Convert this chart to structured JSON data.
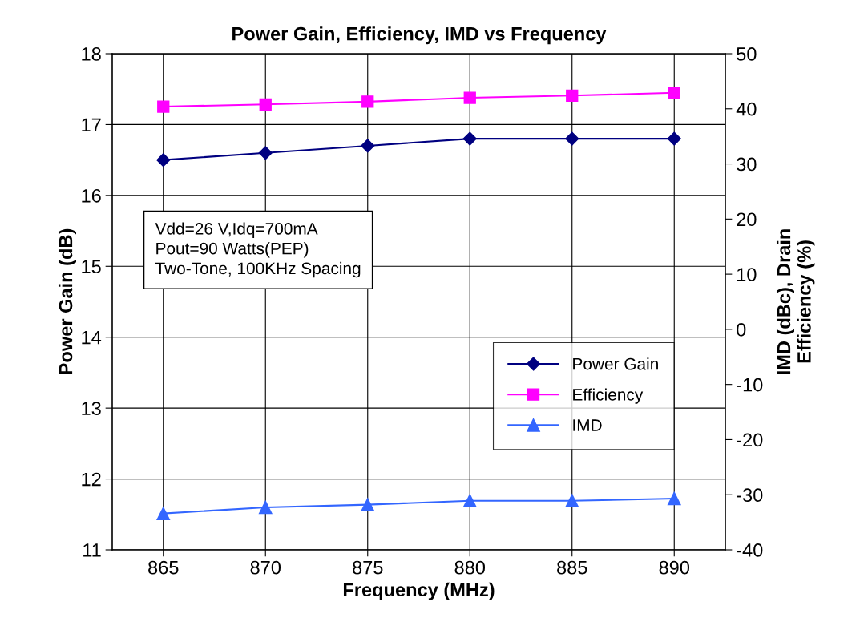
{
  "chart_data": {
    "type": "line",
    "title": "Power Gain, Efficiency, IMD vs Frequency",
    "xlabel": "Frequency (MHz)",
    "ylabel": "Power Gain (dB)",
    "y2label": "IMD (dBc), Drain\nEfficiency (%)",
    "x": [
      865,
      870,
      875,
      880,
      885,
      890
    ],
    "series": [
      {
        "name": "Power Gain",
        "color": "#000080",
        "marker": "diamond",
        "values": [
          16.5,
          16.6,
          16.7,
          16.8,
          16.8,
          16.8
        ]
      },
      {
        "name": "Efficiency",
        "color": "#ff00ff",
        "marker": "square",
        "axis": "y2",
        "values": [
          40.4,
          40.8,
          41.3,
          42.0,
          42.4,
          42.9
        ]
      },
      {
        "name": "IMD",
        "color": "#3366ff",
        "marker": "triangle",
        "axis": "y2",
        "values": [
          -33.4,
          -32.3,
          -31.8,
          -31.1,
          -31.1,
          -30.7
        ]
      }
    ],
    "xlim": [
      862.5,
      892.5
    ],
    "xticks": [
      865,
      870,
      875,
      880,
      885,
      890
    ],
    "ylim": [
      11,
      18
    ],
    "yticks": [
      11,
      12,
      13,
      14,
      15,
      16,
      17,
      18
    ],
    "y2lim": [
      -40,
      50
    ],
    "y2ticks": [
      -40,
      -30,
      -20,
      -10,
      0,
      10,
      20,
      30,
      40,
      50
    ],
    "grid": true,
    "legend": "right",
    "line_style": "solid",
    "annotations": [
      "Vdd=26 V,Idq=700mA\nPout=90 Watts(PEP)\nTwo-Tone, 100KHz Spacing"
    ]
  }
}
